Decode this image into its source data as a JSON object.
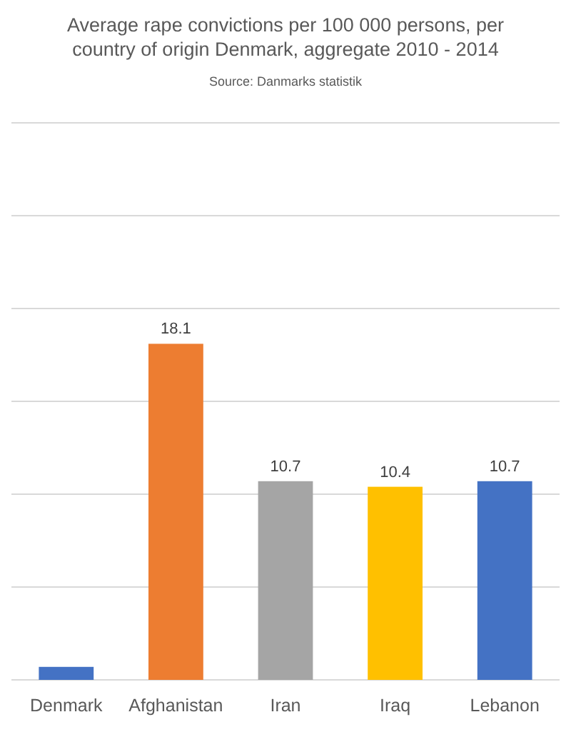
{
  "chart_data": {
    "type": "bar",
    "title": "Average rape convictions per 100 000 persons, per country of origin Denmark, aggregate 2010 - 2014",
    "subtitle": "Source: Danmarks statistik",
    "categories": [
      "Denmark",
      "Afghanistan",
      "Iran",
      "Iraq",
      "Lebanon"
    ],
    "values": [
      0.7,
      18.1,
      10.7,
      10.4,
      10.7
    ],
    "value_labels": [
      null,
      "18.1",
      "10.7",
      "10.4",
      "10.7"
    ],
    "colors": [
      "#4472c4",
      "#ed7d31",
      "#a5a5a5",
      "#ffc000",
      "#4472c4"
    ],
    "ylim": [
      0,
      30
    ],
    "yticks": [
      {
        "value": 0,
        "label": null
      },
      {
        "value": 5,
        "label": null
      },
      {
        "value": 10,
        "label": null
      },
      {
        "value": 15,
        "label": null
      },
      {
        "value": 20,
        "label": null
      },
      {
        "value": 25,
        "label": null
      },
      {
        "value": 30,
        "label": null
      }
    ],
    "grid": "y",
    "tick_labels": "x"
  }
}
